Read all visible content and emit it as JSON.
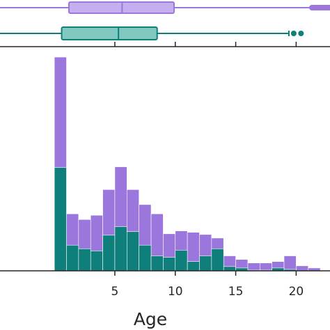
{
  "chart_data": {
    "type": "bar",
    "stacked": true,
    "xlabel": "Age",
    "ylabel": "",
    "xlim": [
      -4.5,
      22.8
    ],
    "xticks": [
      5,
      10,
      15,
      20
    ],
    "bin_width": 1,
    "colors": {
      "purple": "#9b77dd",
      "teal": "#0e7f7b",
      "purple_box": "#c4b0ee",
      "teal_box": "#80c8c0"
    },
    "series": [
      {
        "name": "",
        "color": "#0e7f7b",
        "bin_starts": [
          0,
          1,
          2,
          3,
          4,
          5,
          6,
          7,
          8,
          9,
          10,
          11,
          12,
          13,
          14,
          15,
          16,
          17,
          18,
          19,
          20,
          21
        ],
        "values": [
          145,
          36,
          31,
          28,
          50,
          62,
          55,
          36,
          21,
          19,
          29,
          13,
          21,
          31,
          6,
          4,
          1,
          1,
          4,
          2,
          0,
          0
        ]
      },
      {
        "name": "",
        "color": "#9b77dd",
        "bin_starts": [
          0,
          1,
          2,
          3,
          4,
          5,
          6,
          7,
          8,
          9,
          10,
          11,
          12,
          13,
          14,
          15,
          16,
          17,
          18,
          19,
          20,
          21
        ],
        "values": [
          300,
          80,
          72,
          78,
          114,
          146,
          114,
          93,
          80,
          52,
          56,
          54,
          51,
          46,
          21,
          16,
          11,
          11,
          13,
          21,
          7,
          4
        ]
      }
    ],
    "boxplots": [
      {
        "color": "#9b77dd",
        "fill": "#c4b0ee",
        "q1": 1.2,
        "median": 5.6,
        "q3": 9.9,
        "whisker_high": 22.8
      },
      {
        "color": "#0e7f7b",
        "fill": "#80c8c0",
        "q1": 0.6,
        "median": 5.3,
        "q3": 8.5,
        "whisker_high": 19.4,
        "outliers": [
          19.8,
          20.4
        ]
      }
    ]
  }
}
